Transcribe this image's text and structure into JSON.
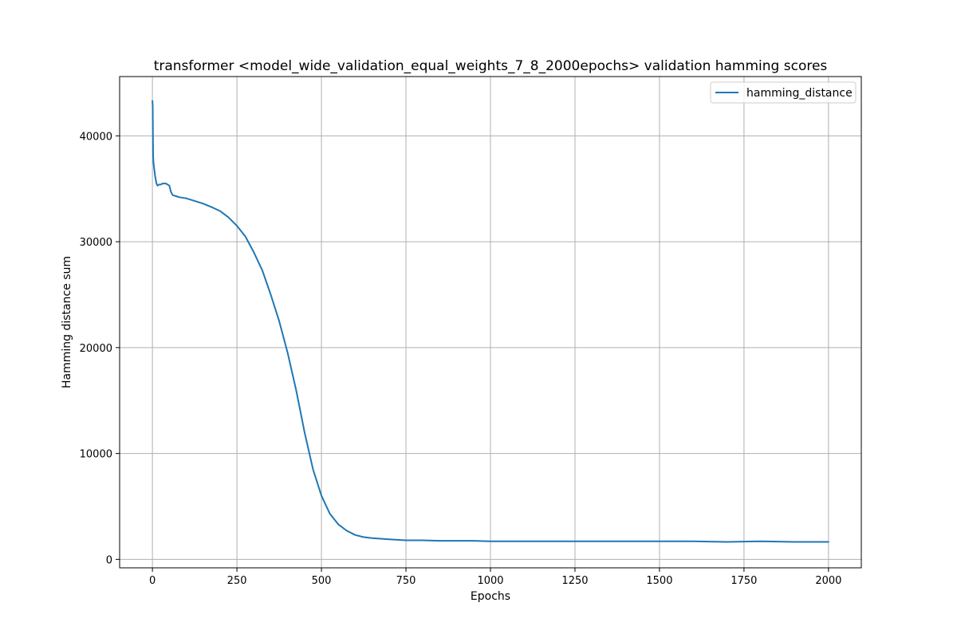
{
  "chart_data": {
    "type": "line",
    "title": "transformer <model_wide_validation_equal_weights_7_8_2000epochs> validation hamming scores",
    "xlabel": "Epochs",
    "ylabel": "Hamming distance sum",
    "xlim": [
      -97,
      2097
    ],
    "ylim": [
      -800,
      45600
    ],
    "xticks": [
      0,
      250,
      500,
      750,
      1000,
      1250,
      1500,
      1750,
      2000
    ],
    "yticks": [
      0,
      10000,
      20000,
      30000,
      40000
    ],
    "xtick_labels": [
      "0",
      "250",
      "500",
      "750",
      "1000",
      "1250",
      "1500",
      "1750",
      "2000"
    ],
    "ytick_labels": [
      "0",
      "10000",
      "20000",
      "30000",
      "40000"
    ],
    "grid": true,
    "legend_position": "top-right",
    "series": [
      {
        "name": "hamming_distance",
        "color": "#1f77b4",
        "x": [
          0,
          1,
          2,
          3,
          5,
          8,
          12,
          15,
          20,
          25,
          30,
          40,
          50,
          55,
          60,
          70,
          80,
          100,
          120,
          150,
          180,
          200,
          225,
          250,
          275,
          300,
          325,
          350,
          375,
          400,
          425,
          450,
          475,
          500,
          525,
          550,
          575,
          600,
          625,
          650,
          700,
          750,
          800,
          850,
          900,
          950,
          1000,
          1100,
          1200,
          1300,
          1400,
          1500,
          1600,
          1700,
          1800,
          1900,
          2000
        ],
        "values": [
          43300,
          42800,
          38200,
          37500,
          37000,
          36200,
          35500,
          35300,
          35400,
          35400,
          35500,
          35500,
          35300,
          34700,
          34400,
          34300,
          34200,
          34100,
          33900,
          33600,
          33200,
          32900,
          32300,
          31500,
          30500,
          29000,
          27300,
          25000,
          22500,
          19500,
          16000,
          12000,
          8500,
          6000,
          4300,
          3300,
          2700,
          2300,
          2100,
          2000,
          1900,
          1800,
          1800,
          1750,
          1750,
          1750,
          1700,
          1700,
          1700,
          1700,
          1700,
          1700,
          1700,
          1650,
          1700,
          1650,
          1650
        ]
      }
    ]
  }
}
